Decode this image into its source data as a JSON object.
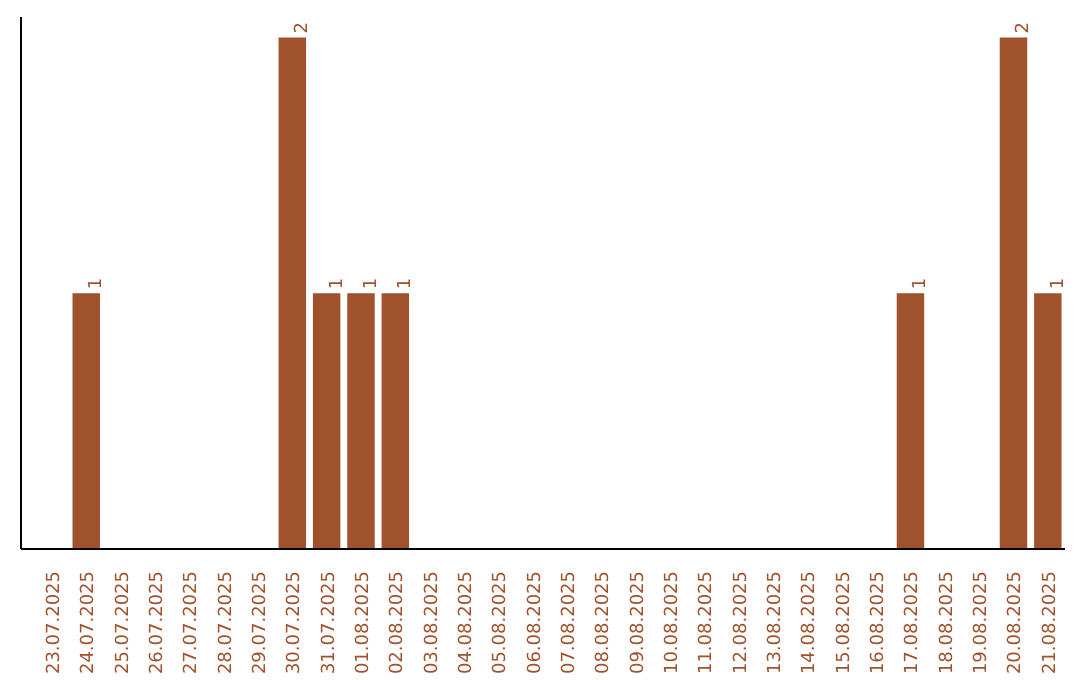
{
  "chart_data": {
    "type": "bar",
    "categories": [
      "23.07.2025",
      "24.07.2025",
      "25.07.2025",
      "26.07.2025",
      "27.07.2025",
      "28.07.2025",
      "29.07.2025",
      "30.07.2025",
      "31.07.2025",
      "01.08.2025",
      "02.08.2025",
      "03.08.2025",
      "04.08.2025",
      "05.08.2025",
      "06.08.2025",
      "07.08.2025",
      "08.08.2025",
      "09.08.2025",
      "10.08.2025",
      "11.08.2025",
      "12.08.2025",
      "13.08.2025",
      "14.08.2025",
      "15.08.2025",
      "16.08.2025",
      "17.08.2025",
      "18.08.2025",
      "19.08.2025",
      "20.08.2025",
      "21.08.2025"
    ],
    "values": [
      0,
      1,
      0,
      0,
      0,
      0,
      0,
      2,
      1,
      1,
      1,
      0,
      0,
      0,
      0,
      0,
      0,
      0,
      0,
      0,
      0,
      0,
      0,
      0,
      0,
      1,
      0,
      0,
      2,
      1
    ],
    "value_labels": [
      null,
      "1",
      null,
      null,
      null,
      null,
      null,
      "2",
      "1",
      "1",
      "1",
      null,
      null,
      null,
      null,
      null,
      null,
      null,
      null,
      null,
      null,
      null,
      null,
      null,
      null,
      "1",
      null,
      null,
      "2",
      "1"
    ],
    "color": "#a0522d",
    "grid": false,
    "tick_labels": "x"
  }
}
